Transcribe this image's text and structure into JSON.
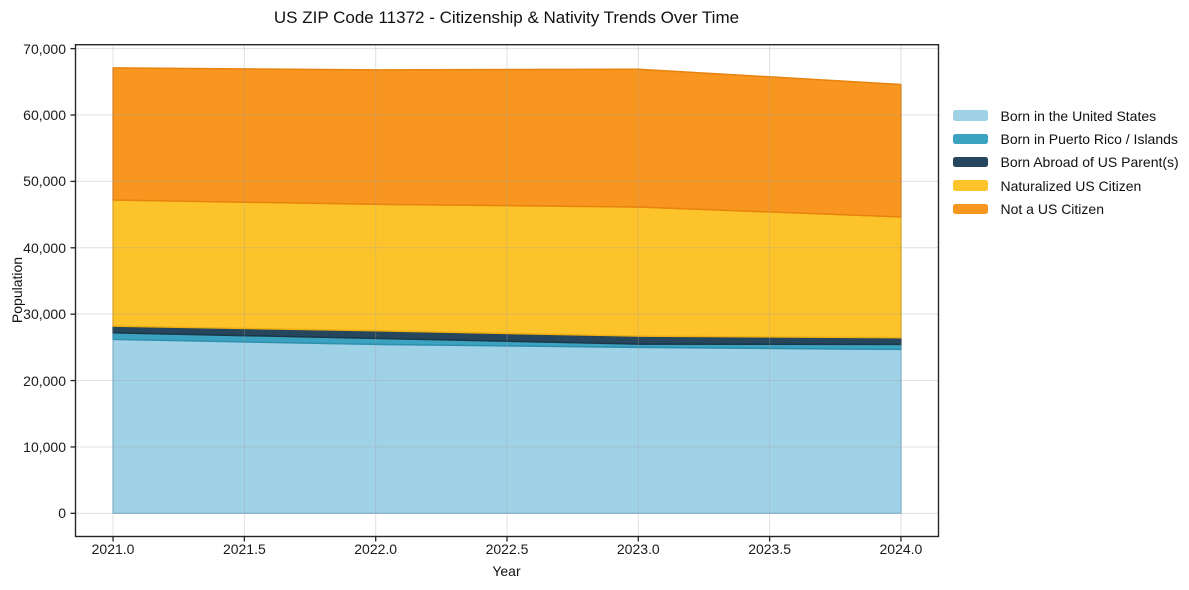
{
  "page": {
    "background": "#ffffff"
  },
  "chart_data": {
    "type": "area",
    "stacked": true,
    "title": "US ZIP Code 11372 - Citizenship & Nativity Trends Over Time",
    "xlabel": "Year",
    "ylabel": "Population",
    "x": [
      2021,
      2022,
      2023,
      2024
    ],
    "series": [
      {
        "name": "Born in the United States",
        "color": "#a0d2e7",
        "edge": "#86bfdc",
        "values": [
          26200,
          25450,
          25000,
          24700
        ]
      },
      {
        "name": "Born in Puerto Rico / Islands",
        "color": "#3ba2c0",
        "edge": "#2f8fae",
        "values": [
          1000,
          900,
          500,
          750
        ]
      },
      {
        "name": "Born Abroad of US Parent(s)",
        "color": "#25465c",
        "edge": "#1b3748",
        "values": [
          1000,
          1150,
          1200,
          1000
        ]
      },
      {
        "name": "Naturalized US Citizen",
        "color": "#fdc32a",
        "edge": "#efaf12",
        "values": [
          19000,
          19050,
          19450,
          18200
        ]
      },
      {
        "name": "Not a US Citizen",
        "color": "#f8961f",
        "edge": "#e7830e",
        "values": [
          19900,
          20250,
          20750,
          19950
        ]
      }
    ],
    "totals": [
      67100,
      66800,
      66900,
      64600
    ],
    "xticks": {
      "values": [
        2021.0,
        2021.5,
        2022.0,
        2022.5,
        2023.0,
        2023.5,
        2024.0
      ],
      "labels": [
        "2021.0",
        "2021.5",
        "2022.0",
        "2022.5",
        "2023.0",
        "2023.5",
        "2024.0"
      ]
    },
    "yticks": {
      "values": [
        0,
        10000,
        20000,
        30000,
        40000,
        50000,
        60000,
        70000
      ],
      "labels": [
        "0",
        "10,000",
        "20,000",
        "30,000",
        "40,000",
        "50,000",
        "60,000",
        "70,000"
      ]
    },
    "xlim": [
      2020.857,
      2024.143
    ],
    "ylim": [
      -3490,
      70595
    ],
    "grid": true,
    "legend_position": "right-outside",
    "axis_color": "#262626",
    "grid_color": "rgba(160,160,160,0.33)"
  }
}
